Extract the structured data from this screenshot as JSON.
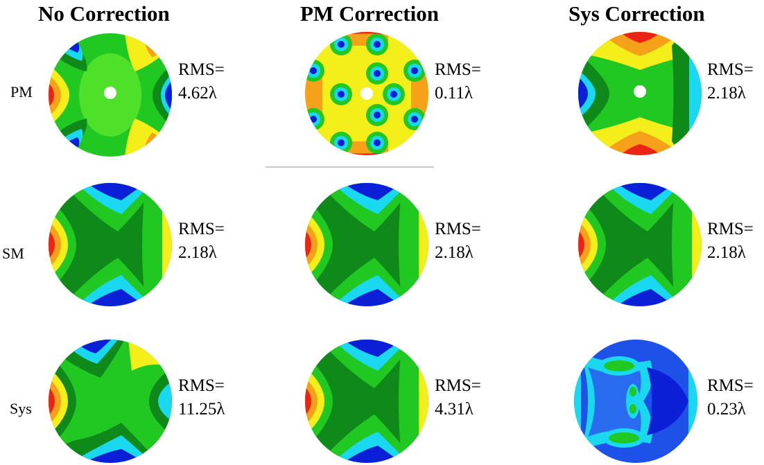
{
  "columns": [
    "No Correction",
    "PM Correction",
    "Sys Correction"
  ],
  "rows": [
    "PM",
    "SM",
    "Sys"
  ],
  "rms_label": "RMS=",
  "cells": [
    [
      {
        "rms": "4.62λ",
        "pattern": "pm-astig"
      },
      {
        "rms": "0.11λ",
        "pattern": "pm-residual"
      },
      {
        "rms": "2.18λ",
        "pattern": "pm-sys"
      }
    ],
    [
      {
        "rms": "2.18λ",
        "pattern": "sm"
      },
      {
        "rms": "2.18λ",
        "pattern": "sm"
      },
      {
        "rms": "2.18λ",
        "pattern": "sm"
      }
    ],
    [
      {
        "rms": "11.25λ",
        "pattern": "sys-none"
      },
      {
        "rms": "4.31λ",
        "pattern": "sys-pm"
      },
      {
        "rms": "0.23λ",
        "pattern": "sys-residual"
      }
    ]
  ],
  "colors": {
    "dark_blue": "#0a1fd6",
    "blue": "#2a6cf0",
    "cyan": "#1ad8f0",
    "dark_green": "#0f8a1a",
    "green": "#22c822",
    "light_green": "#4fe02a",
    "yellow": "#f4ef1a",
    "orange": "#f5a21a",
    "red": "#ec2418"
  }
}
